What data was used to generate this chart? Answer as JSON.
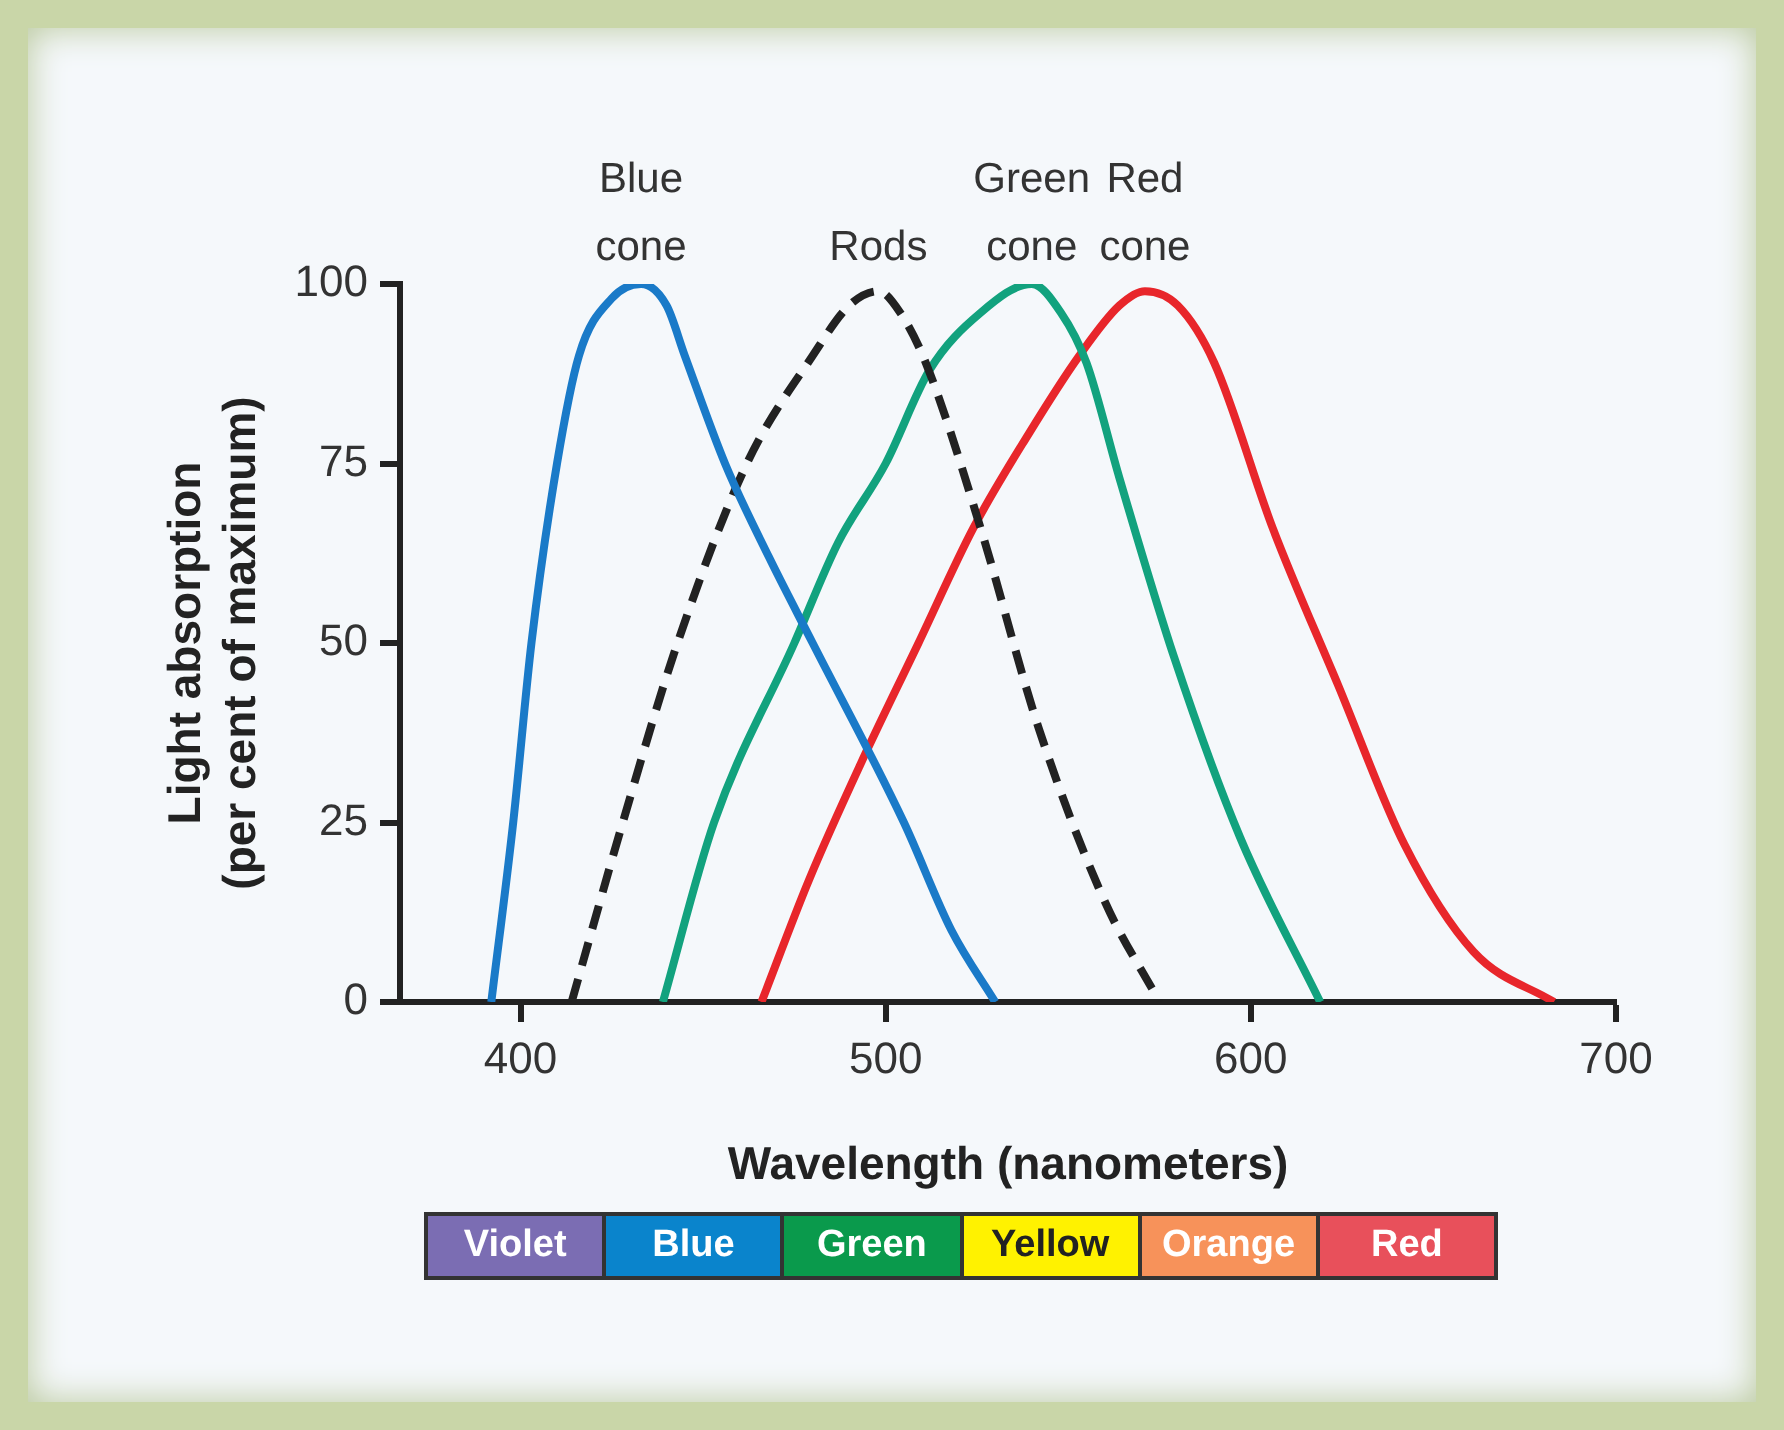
{
  "chart_data": {
    "type": "line",
    "xlabel": "Wavelength (nanometers)",
    "ylabel": "Light absorption (per cent of maximum)",
    "xlim": [
      367,
      700
    ],
    "xticks": [
      400,
      500,
      600,
      700
    ],
    "ylim": [
      0,
      100
    ],
    "yticks": [
      0,
      25,
      50,
      75,
      100
    ],
    "series": [
      {
        "name": "Blue cone",
        "color": "#1a7ac8",
        "x": [
          392,
          398,
          403,
          410,
          416,
          425,
          433,
          440,
          445,
          456,
          468,
          480,
          505,
          518,
          530
        ],
        "values": [
          0,
          25,
          50,
          75,
          90,
          98,
          100,
          97,
          90,
          75,
          62,
          50,
          25,
          10,
          0
        ]
      },
      {
        "name": "Rods",
        "color": "#222222",
        "line_style": "dashed",
        "x": [
          414,
          428,
          443,
          462,
          480,
          490,
          498,
          504,
          511,
          526,
          542,
          560,
          575
        ],
        "values": [
          0,
          25,
          50,
          75,
          90,
          97,
          99,
          96,
          89,
          66,
          38,
          14,
          0
        ]
      },
      {
        "name": "Green cone",
        "color": "#12a27e",
        "x": [
          439,
          453,
          475,
          487,
          500,
          512,
          526,
          540,
          548,
          555,
          564,
          579,
          597,
          619
        ],
        "values": [
          0,
          25,
          50,
          64,
          75,
          88,
          96,
          100,
          96,
          89,
          73,
          48,
          23,
          0
        ]
      },
      {
        "name": "Red cone",
        "color": "#e8262b",
        "x": [
          466,
          479,
          493,
          509,
          524,
          539,
          553,
          564,
          571,
          580,
          590,
          606,
          624,
          642,
          661,
          683
        ],
        "values": [
          0,
          17,
          33,
          50,
          66,
          79,
          90,
          97,
          99,
          97,
          89,
          66,
          44,
          22,
          7,
          0
        ]
      }
    ],
    "annotations": [
      "Violet",
      "Blue",
      "Green",
      "Yellow",
      "Orange",
      "Red"
    ]
  }
}
